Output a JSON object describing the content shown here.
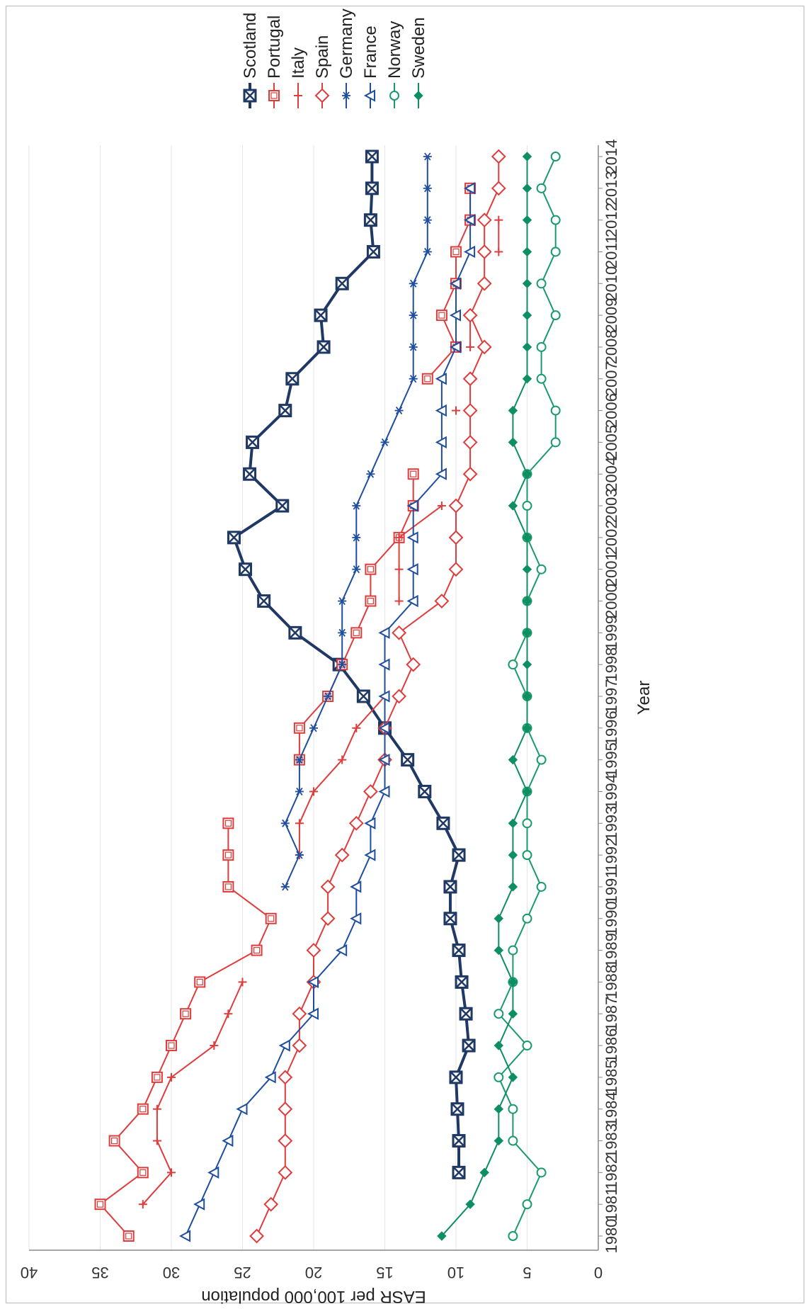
{
  "chart_data": {
    "type": "line",
    "orientation": "rotated-90-clockwise",
    "xlabel": "Year",
    "ylabel": "EASR per 100,000 population",
    "ylim": [
      0,
      40
    ],
    "yticks": [
      0,
      5,
      10,
      15,
      20,
      25,
      30,
      35,
      40
    ],
    "grid": true,
    "legend_placement": "top",
    "categories": [
      "1980",
      "1981",
      "1982",
      "1983",
      "1984",
      "1985",
      "1986",
      "1987",
      "1988",
      "1989",
      "1990",
      "1991",
      "1992",
      "1993",
      "1994",
      "1995",
      "1996",
      "1997",
      "1998",
      "1999",
      "2000",
      "2001",
      "2002",
      "2003",
      "2004",
      "2005",
      "2006",
      "2007",
      "2008",
      "2009",
      "2010",
      "2011",
      "2012",
      "2013",
      "2014"
    ],
    "series": [
      {
        "name": "Scotland",
        "color": "#1f3864",
        "marker": "boxx",
        "values": [
          null,
          null,
          9.8,
          9.8,
          9.9,
          10.0,
          9.1,
          9.3,
          9.6,
          9.8,
          10.4,
          10.4,
          9.8,
          10.9,
          12.2,
          13.4,
          15.0,
          16.5,
          18.2,
          21.3,
          23.5,
          24.8,
          25.6,
          22.2,
          24.5,
          24.3,
          22.0,
          21.5,
          19.3,
          19.5,
          18.0,
          15.8,
          16.0,
          15.9,
          15.9
        ]
      },
      {
        "name": "Portugal",
        "color": "#e03c3c",
        "marker": "square",
        "values": [
          33,
          35,
          32,
          34,
          32,
          31,
          30,
          29,
          28,
          24,
          23,
          26,
          26,
          26,
          null,
          21,
          21,
          19,
          18,
          17,
          16,
          16,
          14,
          13,
          13,
          null,
          null,
          12,
          10,
          11,
          10,
          10,
          9,
          9,
          null
        ]
      },
      {
        "name": "Italy",
        "color": "#e03c3c",
        "marker": "plus",
        "values": [
          null,
          32,
          30,
          31,
          31,
          30,
          27,
          26,
          25,
          null,
          null,
          null,
          21,
          21,
          20,
          18,
          17,
          15,
          null,
          null,
          14,
          14,
          14,
          11,
          null,
          null,
          10,
          null,
          9,
          9,
          null,
          7,
          7,
          null,
          null
        ]
      },
      {
        "name": "Spain",
        "color": "#e03c3c",
        "marker": "diamond",
        "values": [
          24,
          23,
          22,
          22,
          22,
          22,
          21,
          21,
          20,
          20,
          19,
          19,
          18,
          17,
          16,
          15,
          15,
          14,
          13,
          14,
          11,
          10,
          10,
          10,
          9,
          9,
          9,
          9,
          8,
          9,
          8,
          8,
          8,
          7,
          7
        ]
      },
      {
        "name": "Germany",
        "color": "#1f4e9e",
        "marker": "asterisk",
        "values": [
          null,
          null,
          null,
          null,
          null,
          null,
          null,
          null,
          null,
          null,
          null,
          22,
          21,
          22,
          21,
          21,
          20,
          19,
          18,
          18,
          18,
          17,
          17,
          17,
          16,
          15,
          14,
          13,
          13,
          13,
          13,
          12,
          12,
          12,
          12
        ]
      },
      {
        "name": "France",
        "color": "#1f4e9e",
        "marker": "triangle",
        "values": [
          29,
          28,
          27,
          26,
          25,
          23,
          22,
          20,
          20,
          18,
          17,
          17,
          16,
          16,
          15,
          15,
          15,
          15,
          15,
          15,
          13,
          13,
          13,
          13,
          11,
          11,
          11,
          11,
          10,
          10,
          10,
          9,
          9,
          9,
          null
        ]
      },
      {
        "name": "Norway",
        "color": "#1a9b6c",
        "marker": "circle",
        "values": [
          6,
          5,
          4,
          6,
          6,
          7,
          5,
          7,
          6,
          6,
          5,
          4,
          5,
          5,
          5,
          4,
          5,
          5,
          6,
          5,
          5,
          4,
          5,
          5,
          5,
          3,
          3,
          4,
          4,
          3,
          4,
          3,
          3,
          4,
          3
        ]
      },
      {
        "name": "Sweden",
        "color": "#0e8f63",
        "marker": "filled-diamond",
        "values": [
          11,
          9,
          8,
          7,
          7,
          6,
          7,
          6,
          6,
          7,
          7,
          6,
          6,
          6,
          5,
          6,
          5,
          5,
          5,
          5,
          5,
          5,
          5,
          6,
          5,
          6,
          6,
          5,
          5,
          5,
          5,
          5,
          5,
          5,
          5
        ]
      }
    ]
  }
}
